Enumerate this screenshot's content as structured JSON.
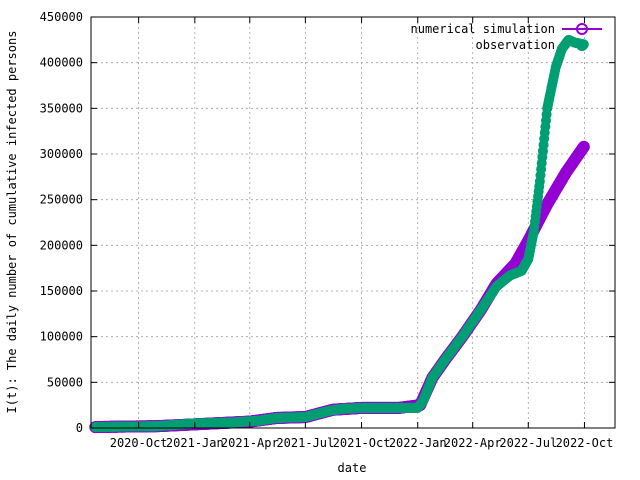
{
  "chart_data": {
    "type": "scatter",
    "xlabel": "date",
    "ylabel": "I(t): The daily number of cumulative infected persons",
    "xlim": [
      "2020-07-15",
      "2022-11-20"
    ],
    "ylim": [
      0,
      450000
    ],
    "grid": true,
    "legend_position": "top-right",
    "y_ticks": [
      0,
      50000,
      100000,
      150000,
      200000,
      250000,
      300000,
      350000,
      400000,
      450000
    ],
    "x_ticks": [
      {
        "date": "2020-10-01",
        "label": "2020-Oct"
      },
      {
        "date": "2021-01-01",
        "label": "2021-Jan"
      },
      {
        "date": "2021-04-01",
        "label": "2021-Apr"
      },
      {
        "date": "2021-07-01",
        "label": "2021-Jul"
      },
      {
        "date": "2021-10-01",
        "label": "2021-Oct"
      },
      {
        "date": "2022-01-01",
        "label": "2022-Jan"
      },
      {
        "date": "2022-04-01",
        "label": "2022-Apr"
      },
      {
        "date": "2022-07-01",
        "label": "2022-Jul"
      },
      {
        "date": "2022-10-01",
        "label": "2022-Oct"
      }
    ],
    "series": [
      {
        "name": "numerical simulation",
        "color": "#9400d3",
        "marker": "circle-open",
        "points": [
          [
            "2020-07-22",
            1000
          ],
          [
            "2020-09-01",
            1500
          ],
          [
            "2020-11-01",
            2000
          ],
          [
            "2021-01-01",
            4000
          ],
          [
            "2021-04-01",
            7000
          ],
          [
            "2021-05-15",
            11000
          ],
          [
            "2021-07-01",
            12000
          ],
          [
            "2021-08-15",
            20000
          ],
          [
            "2021-10-01",
            22000
          ],
          [
            "2021-12-01",
            22000
          ],
          [
            "2022-01-05",
            25000
          ],
          [
            "2022-01-25",
            55000
          ],
          [
            "2022-02-15",
            75000
          ],
          [
            "2022-03-15",
            100000
          ],
          [
            "2022-04-15",
            130000
          ],
          [
            "2022-05-10",
            158000
          ],
          [
            "2022-06-10",
            180000
          ],
          [
            "2022-07-01",
            205000
          ],
          [
            "2022-08-01",
            245000
          ],
          [
            "2022-09-01",
            280000
          ],
          [
            "2022-09-30",
            308000
          ]
        ]
      },
      {
        "name": "observation",
        "color": "#009e73",
        "marker": "circle-filled",
        "points": [
          [
            "2020-07-22",
            1000
          ],
          [
            "2020-09-01",
            1500
          ],
          [
            "2020-11-01",
            2000
          ],
          [
            "2021-01-01",
            5000
          ],
          [
            "2021-03-01",
            6000
          ],
          [
            "2021-04-15",
            8000
          ],
          [
            "2021-05-15",
            11000
          ],
          [
            "2021-07-01",
            12000
          ],
          [
            "2021-08-10",
            19000
          ],
          [
            "2021-09-01",
            21000
          ],
          [
            "2021-10-01",
            22000
          ],
          [
            "2021-12-01",
            22000
          ],
          [
            "2022-01-01",
            22000
          ],
          [
            "2022-01-10",
            30000
          ],
          [
            "2022-01-25",
            55000
          ],
          [
            "2022-02-15",
            75000
          ],
          [
            "2022-03-15",
            100000
          ],
          [
            "2022-04-15",
            130000
          ],
          [
            "2022-05-10",
            155000
          ],
          [
            "2022-06-01",
            167000
          ],
          [
            "2022-06-20",
            172000
          ],
          [
            "2022-07-01",
            185000
          ],
          [
            "2022-07-10",
            215000
          ],
          [
            "2022-07-20",
            270000
          ],
          [
            "2022-08-01",
            350000
          ],
          [
            "2022-08-15",
            395000
          ],
          [
            "2022-08-25",
            415000
          ],
          [
            "2022-09-05",
            425000
          ],
          [
            "2022-09-15",
            422000
          ],
          [
            "2022-09-30",
            420000
          ]
        ]
      }
    ]
  }
}
